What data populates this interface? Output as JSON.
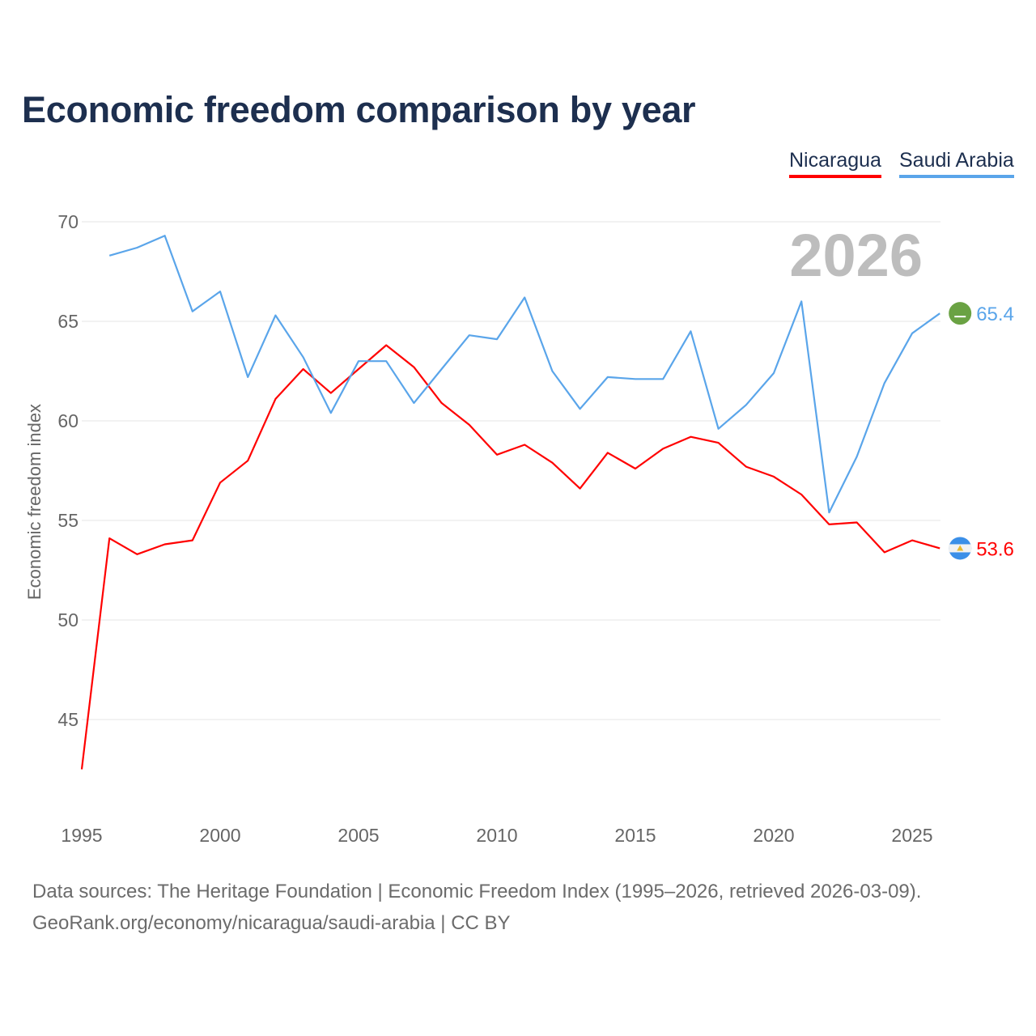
{
  "chart_data": {
    "type": "line",
    "title": "Economic freedom comparison by year",
    "xlabel": "",
    "ylabel": "Economic freedom index",
    "xlim": [
      1995,
      2026
    ],
    "ylim": [
      42,
      72
    ],
    "yticks": [
      45,
      50,
      55,
      60,
      65,
      70
    ],
    "xticks": [
      1995,
      2000,
      2005,
      2010,
      2015,
      2020,
      2025
    ],
    "grid": true,
    "legend_placement": "top-right",
    "year_label": "2026",
    "series": [
      {
        "name": "Nicaragua",
        "color": "#ff0000",
        "end_label": "53.6",
        "x": [
          1995,
          1996,
          1997,
          1998,
          1999,
          2000,
          2001,
          2002,
          2003,
          2004,
          2005,
          2006,
          2007,
          2008,
          2009,
          2010,
          2011,
          2012,
          2013,
          2014,
          2015,
          2016,
          2017,
          2018,
          2019,
          2020,
          2021,
          2022,
          2023,
          2024,
          2025,
          2026
        ],
        "values": [
          42.5,
          54.1,
          53.3,
          53.8,
          54.0,
          56.9,
          58.0,
          61.1,
          62.6,
          61.4,
          62.6,
          63.8,
          62.7,
          60.9,
          59.8,
          58.3,
          58.8,
          57.9,
          56.6,
          58.4,
          57.6,
          58.6,
          59.2,
          58.9,
          57.7,
          57.2,
          56.3,
          54.8,
          54.9,
          53.4,
          54.0,
          53.6
        ]
      },
      {
        "name": "Saudi Arabia",
        "color": "#5aa5ea",
        "end_label": "65.4",
        "x": [
          1996,
          1997,
          1998,
          1999,
          2000,
          2001,
          2002,
          2003,
          2004,
          2005,
          2006,
          2007,
          2008,
          2009,
          2010,
          2011,
          2012,
          2013,
          2014,
          2015,
          2016,
          2017,
          2018,
          2019,
          2020,
          2021,
          2022,
          2023,
          2024,
          2025,
          2026
        ],
        "values": [
          68.3,
          68.7,
          69.3,
          65.5,
          66.5,
          62.2,
          65.3,
          63.2,
          60.4,
          63.0,
          63.0,
          60.9,
          62.6,
          64.3,
          64.1,
          66.2,
          62.5,
          60.6,
          62.2,
          62.1,
          62.1,
          64.5,
          59.6,
          60.8,
          62.4,
          66.0,
          55.4,
          58.2,
          61.9,
          64.4,
          65.4
        ]
      }
    ]
  },
  "footer": {
    "sources": "Data sources: The Heritage Foundation | Economic Freedom Index (1995–2026, retrieved 2026-03-09).",
    "link": "GeoRank.org/economy/nicaragua/saudi-arabia | CC BY"
  }
}
